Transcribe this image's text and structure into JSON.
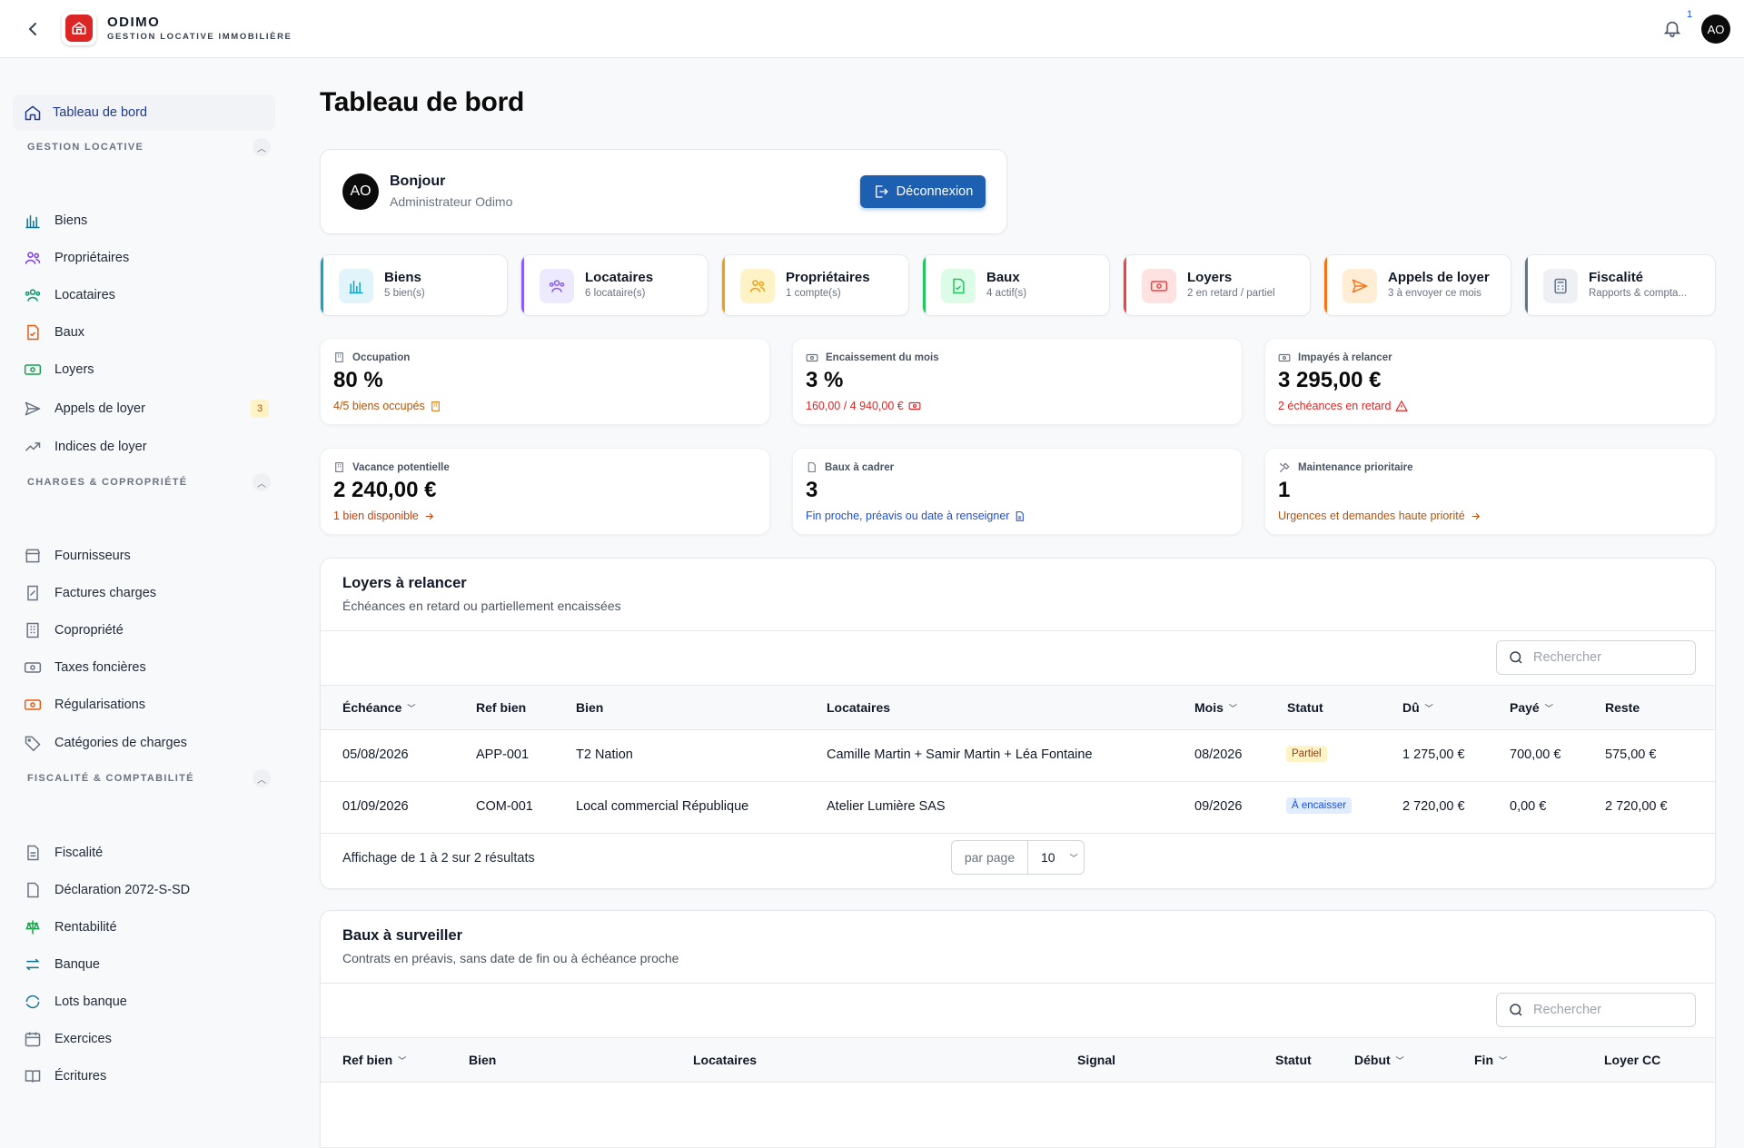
{
  "header": {
    "brand_name": "ODIMO",
    "brand_tagline": "GESTION LOCATIVE IMMOBILIÈRE",
    "notification_count": "1",
    "user_initials": "AO"
  },
  "sidebar": {
    "dashboard": "Tableau de bord",
    "sections": [
      {
        "title": "GESTION LOCATIVE",
        "items": [
          "Biens",
          "Propriétaires",
          "Locataires",
          "Baux",
          "Loyers",
          "Appels de loyer",
          "Indices de loyer"
        ]
      },
      {
        "title": "CHARGES & COPROPRIÉTÉ",
        "items": [
          "Fournisseurs",
          "Factures charges",
          "Copropriété",
          "Taxes foncières",
          "Régularisations",
          "Catégories de charges"
        ]
      },
      {
        "title": "FISCALITÉ & COMPTABILITÉ",
        "items": [
          "Fiscalité",
          "Déclaration 2072-S-SD",
          "Rentabilité",
          "Banque",
          "Lots banque",
          "Exercices",
          "Écritures"
        ]
      }
    ],
    "appels_badge": "3"
  },
  "page": {
    "title": "Tableau de bord",
    "greeting": "Bonjour",
    "user_name": "Administrateur Odimo",
    "user_initials": "AO",
    "logout_label": "Déconnexion"
  },
  "tiles": [
    {
      "title": "Biens",
      "subtitle": "5 bien(s)",
      "color": "#0ea5c6"
    },
    {
      "title": "Locataires",
      "subtitle": "6 locataire(s)",
      "color": "#8b5cf6"
    },
    {
      "title": "Propriétaires",
      "subtitle": "1 compte(s)",
      "color": "#f59e0b"
    },
    {
      "title": "Baux",
      "subtitle": "4 actif(s)",
      "color": "#22c55e"
    },
    {
      "title": "Loyers",
      "subtitle": "2 en retard / partiel",
      "color": "#ef4444"
    },
    {
      "title": "Appels de loyer",
      "subtitle": "3 à envoyer ce mois",
      "color": "#f97316"
    },
    {
      "title": "Fiscalité",
      "subtitle": "Rapports & compta...",
      "color": "#64748b"
    }
  ],
  "stats": [
    {
      "label": "Occupation",
      "value": "80 %",
      "sub": "4/5 biens occupés",
      "sub_color": "#b45309"
    },
    {
      "label": "Encaissement du mois",
      "value": "3 %",
      "sub": "160,00 / 4 940,00 €",
      "sub_color": "#dc2626"
    },
    {
      "label": "Impayés à relancer",
      "value": "3 295,00 €",
      "sub": "2 échéances en retard",
      "sub_color": "#dc2626"
    },
    {
      "label": "Vacance potentielle",
      "value": "2 240,00 €",
      "sub": "1 bien disponible",
      "sub_color": "#c2410c"
    },
    {
      "label": "Baux à cadrer",
      "value": "3",
      "sub": "Fin proche, préavis ou date à renseigner",
      "sub_color": "#1d4ed8"
    },
    {
      "label": "Maintenance prioritaire",
      "value": "1",
      "sub": "Urgences et demandes haute priorité",
      "sub_color": "#b45309"
    }
  ],
  "loyers_panel": {
    "title": "Loyers à relancer",
    "subtitle": "Échéances en retard ou partiellement encaissées",
    "search_placeholder": "Rechercher",
    "columns": [
      "Échéance",
      "Ref bien",
      "Bien",
      "Locataires",
      "Mois",
      "Statut",
      "Dû",
      "Payé",
      "Reste"
    ],
    "rows": [
      {
        "echeance": "05/08/2026",
        "ref": "APP-001",
        "bien": "T2 Nation",
        "locataires": "Camille Martin + Samir Martin + Léa Fontaine",
        "mois": "08/2026",
        "statut": "Partiel",
        "du": "1 275,00 €",
        "paye": "700,00 €",
        "reste": "575,00 €"
      },
      {
        "echeance": "01/09/2026",
        "ref": "COM-001",
        "bien": "Local commercial République",
        "locataires": "Atelier Lumière SAS",
        "mois": "09/2026",
        "statut": "À encaisser",
        "du": "2 720,00 €",
        "paye": "0,00 €",
        "reste": "2 720,00 €"
      }
    ],
    "footer": "Affichage de 1 à 2 sur 2 résultats",
    "per_page_label": "par page",
    "per_page_value": "10"
  },
  "baux_panel": {
    "title": "Baux à surveiller",
    "subtitle": "Contrats en préavis, sans date de fin ou à échéance proche",
    "search_placeholder": "Rechercher",
    "columns": [
      "Ref bien",
      "Bien",
      "Locataires",
      "Signal",
      "Statut",
      "Début",
      "Fin",
      "Loyer CC"
    ]
  }
}
